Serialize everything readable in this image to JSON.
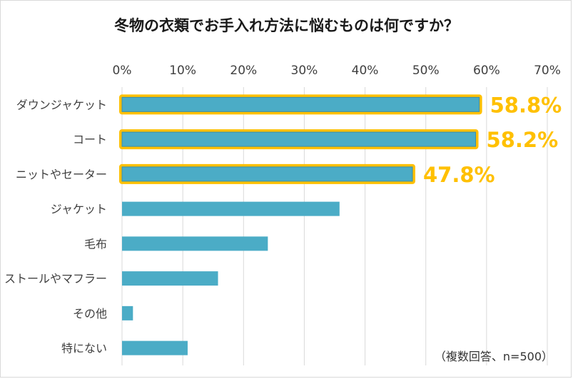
{
  "chart_data": {
    "type": "bar",
    "orientation": "horizontal",
    "title": "冬物の衣類でお手入れ方法に悩むものは何ですか？",
    "note": "（複数回答、n=500）",
    "categories": [
      "ダウンジャケット",
      "コート",
      "ニットやセーター",
      "ジャケット",
      "毛布",
      "ストールやマフラー",
      "その他",
      "特にない"
    ],
    "values": [
      58.8,
      58.2,
      47.8,
      35.8,
      24.0,
      15.8,
      1.8,
      10.8
    ],
    "data_labels": [
      "58.8%",
      "58.2%",
      "47.8%",
      "",
      "",
      "",
      "",
      ""
    ],
    "highlighted": [
      true,
      true,
      true,
      false,
      false,
      false,
      false,
      false
    ],
    "x_ticks": [
      "0%",
      "10%",
      "20%",
      "30%",
      "40%",
      "50%",
      "60%",
      "70%"
    ],
    "xlim": [
      0,
      70
    ],
    "x_axis_position": "top",
    "grid": true,
    "legend": "none",
    "colors": {
      "bar": "#4bacc6",
      "highlight": "#ffc000",
      "label": "#ffc000",
      "grid": "#d9d9d9",
      "text": "#404040"
    }
  }
}
